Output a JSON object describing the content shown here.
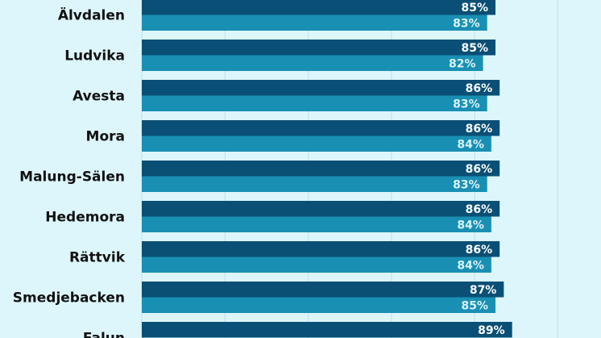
{
  "chart_data": {
    "type": "bar",
    "orientation": "horizontal",
    "title": "",
    "xlabel": "",
    "ylabel": "",
    "grid": true,
    "categories": [
      "Älvdalen",
      "Ludvika",
      "Avesta",
      "Mora",
      "Malung-Sälen",
      "Hedemora",
      "Rättvik",
      "Smedjebacken",
      "Falun"
    ],
    "series": [
      {
        "values": [
          85,
          85,
          86,
          86,
          86,
          86,
          86,
          87,
          89
        ],
        "labels": [
          "85%",
          "85%",
          "86%",
          "86%",
          "86%",
          "86%",
          "86%",
          "87%",
          "89%"
        ],
        "color": "#0a4f75",
        "label_color": "#ffffff"
      },
      {
        "values": [
          83,
          82,
          83,
          84,
          83,
          84,
          84,
          85,
          null
        ],
        "labels": [
          "83%",
          "82%",
          "83%",
          "84%",
          "83%",
          "84%",
          "84%",
          "85%",
          ""
        ],
        "color": "#1a8fb4",
        "label_color": "#d8f3fa"
      }
    ],
    "xlim": [
      0,
      100
    ]
  }
}
